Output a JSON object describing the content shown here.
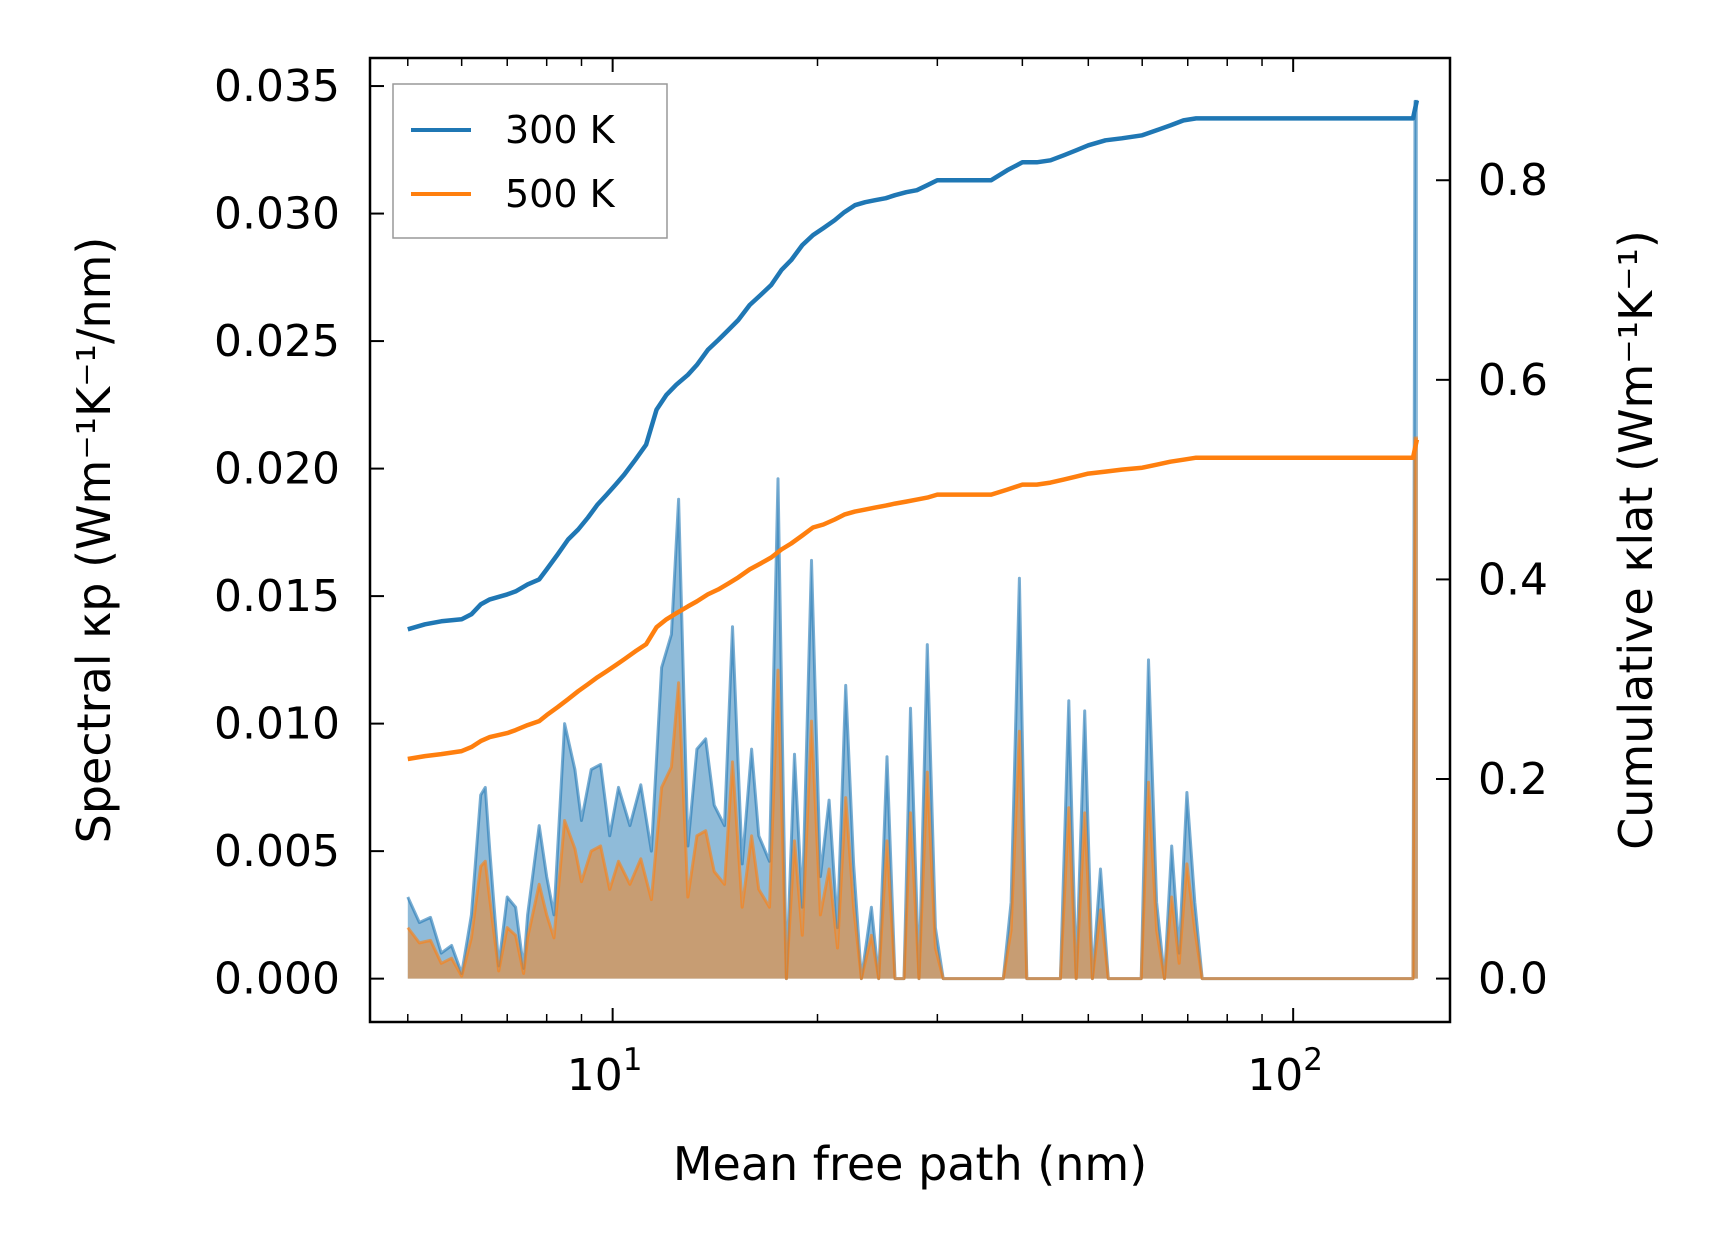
{
  "chart_data": {
    "type": "line",
    "title": "",
    "xlabel": "Mean free path (nm)",
    "ylabel_left": "Spectral κp (Wm⁻¹K⁻¹/nm)",
    "ylabel_right": "Cumulative κlat (Wm⁻¹K⁻¹)",
    "xscale": "log",
    "xlim": [
      4.4,
      170
    ],
    "ylim_left": [
      -0.0017,
      0.0361
    ],
    "ylim_right": [
      -0.0435,
      0.9225
    ],
    "x_ticks": [
      {
        "value": 10,
        "base": "10",
        "exp": "1"
      },
      {
        "value": 100,
        "base": "10",
        "exp": "2"
      }
    ],
    "y_left_ticks": [
      "0.000",
      "0.005",
      "0.010",
      "0.015",
      "0.020",
      "0.025",
      "0.030",
      "0.035"
    ],
    "y_left_tick_values": [
      0,
      0.005,
      0.01,
      0.015,
      0.02,
      0.025,
      0.03,
      0.035
    ],
    "y_right_ticks": [
      "0.0",
      "0.2",
      "0.4",
      "0.6",
      "0.8"
    ],
    "y_right_tick_values": [
      0,
      0.2,
      0.4,
      0.6,
      0.8
    ],
    "legend": {
      "position": "top-left",
      "entries": [
        {
          "label": "300 K",
          "color": "#1f77b4"
        },
        {
          "label": "500 K",
          "color": "#ff7f0e"
        }
      ]
    },
    "series": [
      {
        "name": "300 K spectral",
        "axis": "left",
        "style": "filled",
        "color": "#1f77b4",
        "x": [
          5.0,
          5.2,
          5.4,
          5.6,
          5.8,
          6.0,
          6.2,
          6.4,
          6.5,
          6.6,
          6.8,
          7.0,
          7.2,
          7.4,
          7.5,
          7.8,
          8.0,
          8.2,
          8.5,
          8.8,
          9.0,
          9.3,
          9.6,
          9.9,
          10.2,
          10.6,
          11.0,
          11.4,
          11.8,
          12.2,
          12.5,
          12.9,
          13.3,
          13.7,
          14.1,
          14.6,
          15.0,
          15.5,
          16.0,
          16.4,
          17.0,
          17.5,
          18.0,
          18.5,
          19.0,
          19.6,
          20.2,
          20.8,
          21.4,
          22.0,
          22.6,
          23.2,
          24.0,
          24.6,
          25.3,
          26.0,
          26.8,
          27.4,
          28.2,
          29.0,
          29.8,
          30.6,
          31.4,
          37.5,
          38.5,
          39.6,
          40.6,
          41.7,
          45.5,
          46.8,
          48.0,
          49.4,
          50.7,
          52.1,
          53.5,
          55.0,
          59.8,
          61.3,
          63.0,
          64.7,
          66.3,
          68.0,
          69.8,
          71.7,
          73.5,
          75.0,
          150.0,
          151.0,
          152.5
        ],
        "values": [
          0.0032,
          0.0022,
          0.0024,
          0.001,
          0.0013,
          0.0002,
          0.0025,
          0.0072,
          0.0075,
          0.005,
          0.0005,
          0.0032,
          0.0028,
          0.0004,
          0.0025,
          0.006,
          0.004,
          0.0025,
          0.01,
          0.0082,
          0.0062,
          0.0082,
          0.0084,
          0.0056,
          0.0075,
          0.006,
          0.0076,
          0.005,
          0.0122,
          0.0135,
          0.0188,
          0.0052,
          0.009,
          0.0094,
          0.0068,
          0.006,
          0.0138,
          0.0045,
          0.009,
          0.0056,
          0.0046,
          0.0196,
          0.0,
          0.0088,
          0.0028,
          0.0164,
          0.004,
          0.007,
          0.002,
          0.0115,
          0.0045,
          0.0,
          0.0028,
          0.0,
          0.0087,
          0.0,
          0.0,
          0.0106,
          0.0,
          0.0131,
          0.002,
          0.0,
          0.0,
          0.0,
          0.003,
          0.0157,
          0.0,
          0.0,
          0.0,
          0.0109,
          0.0,
          0.0105,
          0.0,
          0.0043,
          0.0,
          0.0,
          0.0,
          0.0125,
          0.003,
          0.0,
          0.0052,
          0.001,
          0.0073,
          0.003,
          0.0,
          0.0,
          0.0,
          0.0344,
          0.0344
        ]
      },
      {
        "name": "500 K spectral",
        "axis": "left",
        "style": "filled",
        "color": "#ff7f0e",
        "x": [
          5.0,
          5.2,
          5.4,
          5.6,
          5.8,
          6.0,
          6.2,
          6.4,
          6.5,
          6.6,
          6.8,
          7.0,
          7.2,
          7.4,
          7.5,
          7.8,
          8.0,
          8.2,
          8.5,
          8.8,
          9.0,
          9.3,
          9.6,
          9.9,
          10.2,
          10.6,
          11.0,
          11.4,
          11.8,
          12.2,
          12.5,
          12.9,
          13.3,
          13.7,
          14.1,
          14.6,
          15.0,
          15.5,
          16.0,
          16.4,
          17.0,
          17.5,
          18.0,
          18.5,
          19.0,
          19.6,
          20.2,
          20.8,
          21.4,
          22.0,
          22.6,
          23.2,
          24.0,
          24.6,
          25.3,
          26.0,
          26.8,
          27.4,
          28.2,
          29.0,
          29.8,
          30.6,
          31.4,
          37.5,
          38.5,
          39.6,
          40.6,
          41.7,
          45.5,
          46.8,
          48.0,
          49.4,
          50.7,
          52.1,
          53.5,
          55.0,
          59.8,
          61.3,
          63.0,
          64.7,
          66.3,
          68.0,
          69.8,
          71.7,
          73.5,
          75.0,
          150.0,
          151.0,
          152.5
        ],
        "values": [
          0.002,
          0.0014,
          0.0015,
          0.0006,
          0.0008,
          0.0001,
          0.0016,
          0.0044,
          0.0046,
          0.0031,
          0.0003,
          0.002,
          0.0017,
          0.0002,
          0.0016,
          0.0037,
          0.0025,
          0.0016,
          0.0062,
          0.0051,
          0.0038,
          0.005,
          0.0052,
          0.0035,
          0.0046,
          0.0037,
          0.0047,
          0.0031,
          0.0075,
          0.0083,
          0.0116,
          0.0032,
          0.0056,
          0.0058,
          0.0042,
          0.0037,
          0.0085,
          0.0028,
          0.0056,
          0.0035,
          0.0028,
          0.0121,
          0.0,
          0.0054,
          0.0017,
          0.0101,
          0.0025,
          0.0043,
          0.0012,
          0.0071,
          0.0028,
          0.0,
          0.0017,
          0.0,
          0.0054,
          0.0,
          0.0,
          0.0065,
          0.0,
          0.0081,
          0.0012,
          0.0,
          0.0,
          0.0,
          0.0019,
          0.0097,
          0.0,
          0.0,
          0.0,
          0.0067,
          0.0,
          0.0065,
          0.0,
          0.0027,
          0.0,
          0.0,
          0.0,
          0.0077,
          0.0019,
          0.0,
          0.0032,
          0.0006,
          0.0045,
          0.0019,
          0.0,
          0.0,
          0.0,
          0.0212,
          0.0212
        ]
      },
      {
        "name": "300 K",
        "axis": "right",
        "style": "line",
        "color": "#1f77b4",
        "x": [
          5.0,
          5.3,
          5.6,
          6.0,
          6.2,
          6.4,
          6.6,
          7.0,
          7.2,
          7.5,
          7.8,
          8.0,
          8.3,
          8.6,
          8.9,
          9.2,
          9.5,
          9.8,
          10.1,
          10.4,
          10.8,
          11.2,
          11.6,
          12.0,
          12.4,
          12.9,
          13.3,
          13.8,
          14.3,
          14.8,
          15.3,
          15.9,
          16.5,
          17.1,
          17.7,
          18.3,
          19.0,
          19.7,
          20.4,
          21.2,
          21.9,
          22.7,
          23.5,
          24.3,
          25.2,
          26.0,
          27.0,
          28.0,
          29.0,
          30.0,
          31.0,
          36.0,
          38.0,
          40.0,
          42.0,
          44.0,
          46.0,
          48.0,
          50.0,
          53.0,
          56.0,
          60.0,
          63.0,
          66.0,
          69.0,
          72.0,
          75.0,
          150.0,
          152.0
        ],
        "values": [
          0.35,
          0.355,
          0.358,
          0.36,
          0.365,
          0.375,
          0.38,
          0.385,
          0.388,
          0.395,
          0.4,
          0.41,
          0.425,
          0.44,
          0.45,
          0.462,
          0.475,
          0.485,
          0.495,
          0.505,
          0.52,
          0.535,
          0.57,
          0.585,
          0.595,
          0.605,
          0.615,
          0.63,
          0.64,
          0.65,
          0.66,
          0.675,
          0.685,
          0.695,
          0.71,
          0.72,
          0.735,
          0.745,
          0.752,
          0.76,
          0.768,
          0.775,
          0.778,
          0.78,
          0.782,
          0.785,
          0.788,
          0.79,
          0.795,
          0.8,
          0.8,
          0.8,
          0.81,
          0.818,
          0.818,
          0.82,
          0.825,
          0.83,
          0.835,
          0.84,
          0.842,
          0.845,
          0.85,
          0.855,
          0.86,
          0.862,
          0.862,
          0.862,
          0.88
        ]
      },
      {
        "name": "500 K",
        "axis": "right",
        "style": "line",
        "color": "#ff7f0e",
        "x": [
          5.0,
          5.3,
          5.6,
          6.0,
          6.2,
          6.4,
          6.6,
          7.0,
          7.2,
          7.5,
          7.8,
          8.0,
          8.3,
          8.6,
          8.9,
          9.2,
          9.5,
          9.8,
          10.1,
          10.4,
          10.8,
          11.2,
          11.6,
          12.0,
          12.4,
          12.9,
          13.3,
          13.8,
          14.3,
          14.8,
          15.3,
          15.9,
          16.5,
          17.1,
          17.7,
          18.3,
          19.0,
          19.7,
          20.4,
          21.2,
          21.9,
          22.7,
          23.5,
          24.3,
          25.2,
          26.0,
          27.0,
          28.0,
          29.0,
          30.0,
          31.0,
          36.0,
          38.0,
          40.0,
          42.0,
          44.0,
          46.0,
          48.0,
          50.0,
          53.0,
          56.0,
          60.0,
          63.0,
          66.0,
          69.0,
          72.0,
          75.0,
          150.0,
          152.0
        ],
        "values": [
          0.22,
          0.223,
          0.225,
          0.228,
          0.232,
          0.238,
          0.242,
          0.246,
          0.249,
          0.254,
          0.258,
          0.264,
          0.272,
          0.28,
          0.288,
          0.295,
          0.302,
          0.308,
          0.314,
          0.32,
          0.328,
          0.335,
          0.352,
          0.36,
          0.366,
          0.373,
          0.378,
          0.385,
          0.39,
          0.396,
          0.402,
          0.41,
          0.416,
          0.422,
          0.43,
          0.436,
          0.444,
          0.452,
          0.455,
          0.46,
          0.465,
          0.468,
          0.47,
          0.472,
          0.474,
          0.476,
          0.478,
          0.48,
          0.482,
          0.485,
          0.485,
          0.485,
          0.49,
          0.495,
          0.495,
          0.497,
          0.5,
          0.503,
          0.506,
          0.508,
          0.51,
          0.512,
          0.515,
          0.518,
          0.52,
          0.522,
          0.522,
          0.522,
          0.54
        ]
      }
    ]
  }
}
